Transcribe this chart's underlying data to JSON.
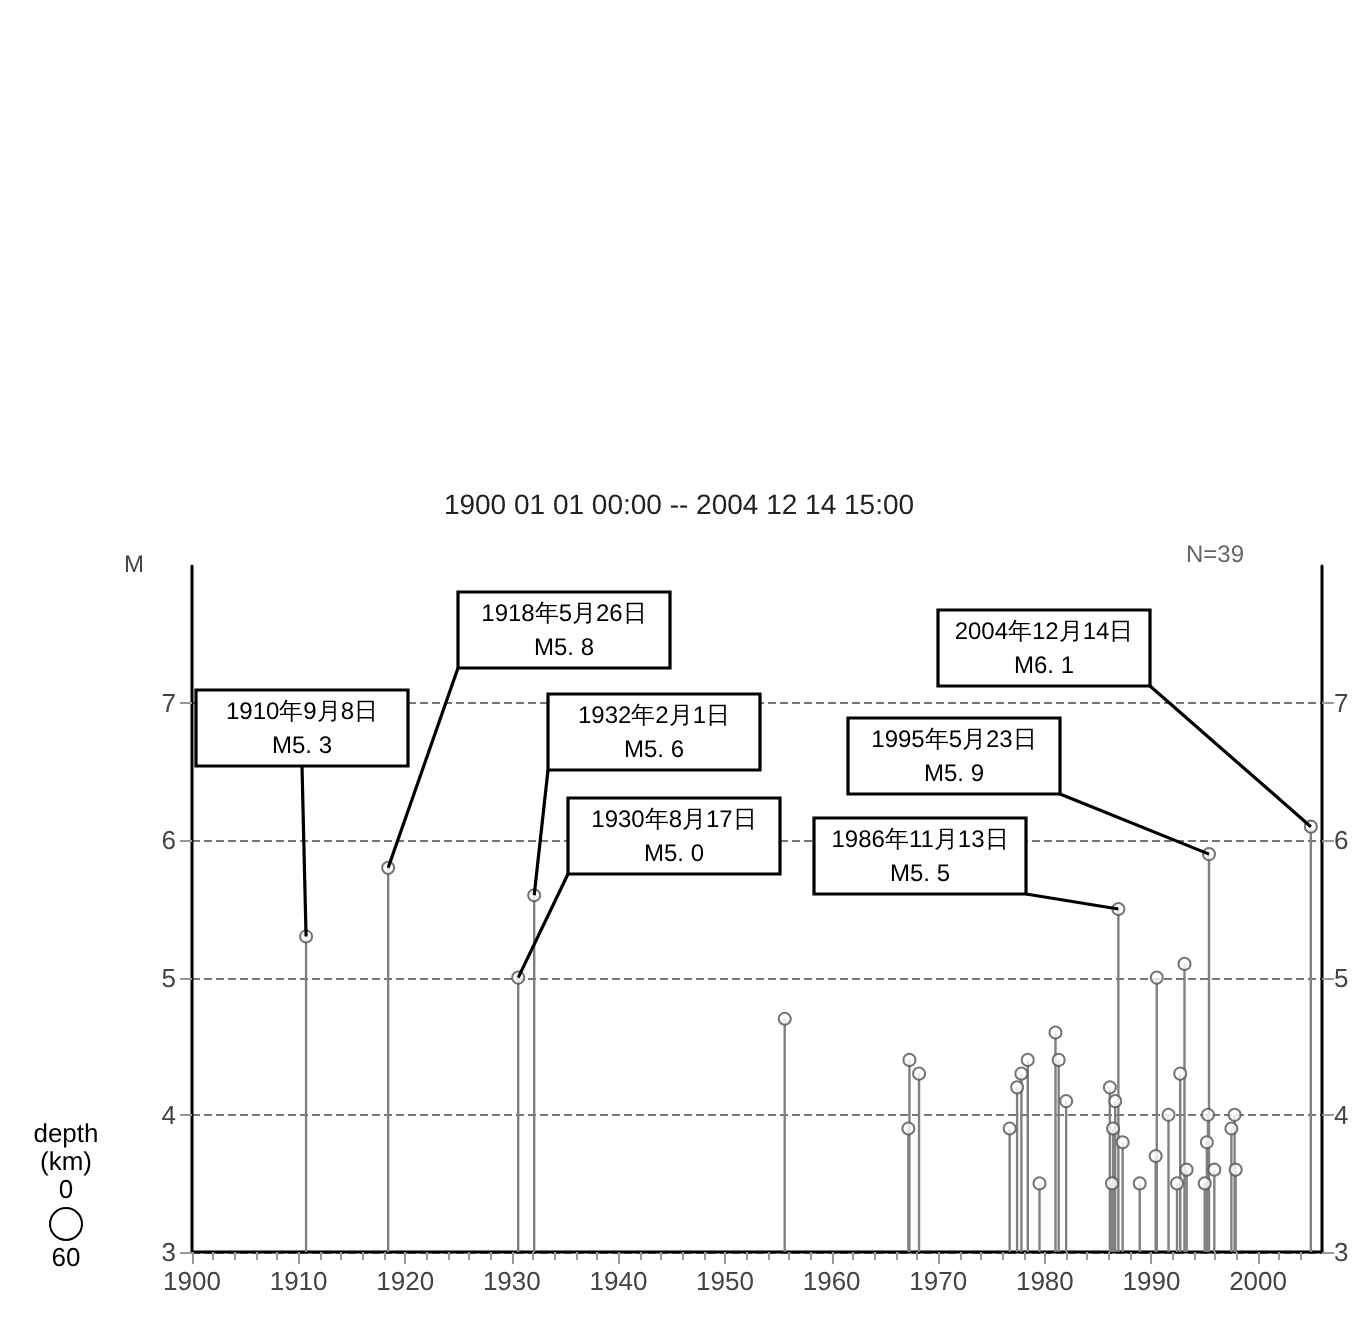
{
  "chart_data": {
    "type": "lollipop",
    "title": "1900 01 01 00:00 -- 2004 12 14 15:00",
    "ylabel": "M",
    "x": [
      1910.7,
      1918.4,
      1930.6,
      1932.1,
      1955.6,
      1967.2,
      1967.3,
      1968.2,
      1976.7,
      1977.4,
      1977.8,
      1978.4,
      1979.5,
      1981.0,
      1981.3,
      1982.0,
      1986.1,
      1986.3,
      1986.4,
      1986.6,
      1986.9,
      1987.3,
      1988.9,
      1990.4,
      1990.5,
      1991.6,
      1992.4,
      1992.7,
      1993.1,
      1993.3,
      1995.0,
      1995.2,
      1995.3,
      1995.4,
      1995.9,
      1997.5,
      1997.8,
      1997.9,
      2004.95
    ],
    "series": [
      {
        "color": "#808080",
        "values": [
          5.3,
          5.8,
          5.0,
          5.6,
          4.7,
          3.9,
          4.4,
          4.3,
          3.9,
          4.2,
          4.3,
          4.4,
          3.5,
          4.6,
          4.4,
          4.1,
          4.2,
          3.5,
          3.9,
          4.1,
          5.5,
          3.8,
          3.5,
          3.7,
          5.0,
          4.0,
          3.5,
          4.3,
          5.1,
          3.6,
          3.5,
          3.8,
          4.0,
          5.9,
          3.6,
          3.9,
          4.0,
          3.6,
          6.1
        ]
      }
    ],
    "xlim": [
      1900,
      2006
    ],
    "xticks": [
      1900,
      1910,
      1920,
      1930,
      1940,
      1950,
      1960,
      1970,
      1980,
      1990,
      2000
    ],
    "ylim": [
      3,
      8
    ],
    "yticks": [
      3,
      4,
      5,
      6,
      7
    ],
    "y2lim": [
      3,
      8
    ],
    "y2ticks": [
      3,
      4,
      5,
      6,
      7
    ],
    "grid": "y",
    "marker": "circle",
    "annotations": [
      "N=39",
      "depth",
      "(km)",
      "0",
      "60",
      {
        "text": "1910年9月8日\nM5. 3",
        "x": 1910.7,
        "y": 5.3
      },
      {
        "text": "1918年5月26日\nM5. 8",
        "x": 1918.4,
        "y": 5.8
      },
      {
        "text": "1932年2月1日\nM5. 6",
        "x": 1932.1,
        "y": 5.6
      },
      {
        "text": "1930年8月17日\nM5. 0",
        "x": 1930.6,
        "y": 5.0
      },
      {
        "text": "1986年11月13日\nM5. 5",
        "x": 1986.9,
        "y": 5.5
      },
      {
        "text": "1995年5月23日\nM5. 9",
        "x": 1995.4,
        "y": 5.9
      },
      {
        "text": "2004年12月14日\nM6. 1",
        "x": 2004.95,
        "y": 6.1
      }
    ]
  }
}
